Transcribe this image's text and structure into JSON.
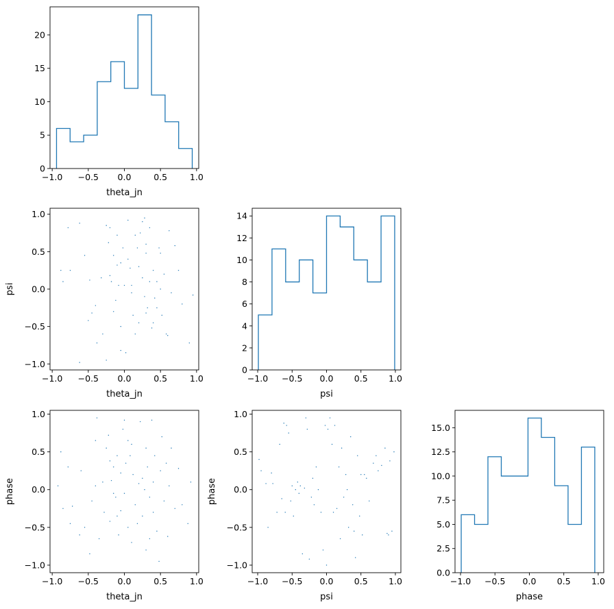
{
  "figure_type": "corner-plot",
  "colors": {
    "histogram": "#1f77b4",
    "scatter": "#1f77b4",
    "axes": "#000000"
  },
  "chart_data": [
    {
      "id": "hist_theta_jn",
      "type": "histogram-step",
      "xlabel": "theta_jn",
      "ylabel": "",
      "bin_edges": [
        -0.94,
        -0.752,
        -0.564,
        -0.376,
        -0.188,
        0.0,
        0.188,
        0.376,
        0.564,
        0.752,
        0.94
      ],
      "counts": [
        6,
        4,
        5,
        13,
        16,
        12,
        23,
        11,
        7,
        3
      ],
      "xlim": [
        -1.03,
        1.03
      ],
      "ylim": [
        0,
        24.2
      ],
      "xticks": [
        -1.0,
        -0.5,
        0.0,
        0.5,
        1.0
      ],
      "yticks": [
        0,
        5,
        10,
        15,
        20
      ],
      "xtick_labels": [
        "−1.0",
        "−0.5",
        "0.0",
        "0.5",
        "1.0"
      ],
      "ytick_labels": [
        "0",
        "5",
        "10",
        "15",
        "20"
      ]
    },
    {
      "id": "scatter_theta_jn_psi",
      "type": "scatter",
      "xlabel": "theta_jn",
      "ylabel": "psi",
      "xlim": [
        -1.03,
        1.03
      ],
      "ylim": [
        -1.08,
        1.08
      ],
      "xticks": [
        -1.0,
        -0.5,
        0.0,
        0.5,
        1.0
      ],
      "yticks": [
        -1.0,
        -0.5,
        0.0,
        0.5,
        1.0
      ],
      "xtick_labels": [
        "−1.0",
        "−0.5",
        "0.0",
        "0.5",
        "1.0"
      ],
      "ytick_labels": [
        "−1.0",
        "−0.5",
        "0.0",
        "0.5",
        "1.0"
      ],
      "points": [
        [
          -0.88,
          0.25
        ],
        [
          -0.85,
          0.1
        ],
        [
          -0.78,
          0.82
        ],
        [
          -0.75,
          0.25
        ],
        [
          -0.62,
          0.88
        ],
        [
          -0.62,
          -0.98
        ],
        [
          -0.55,
          0.45
        ],
        [
          -0.5,
          -0.42
        ],
        [
          -0.48,
          0.12
        ],
        [
          -0.45,
          -0.32
        ],
        [
          -0.4,
          -0.22
        ],
        [
          -0.38,
          -0.72
        ],
        [
          -0.3,
          -0.6
        ],
        [
          -0.25,
          0.85
        ],
        [
          -0.25,
          -0.95
        ],
        [
          -0.22,
          0.62
        ],
        [
          -0.2,
          0.18
        ],
        [
          -0.2,
          0.82
        ],
        [
          -0.18,
          0.1
        ],
        [
          -0.15,
          0.45
        ],
        [
          -0.15,
          -0.3
        ],
        [
          -0.12,
          -0.15
        ],
        [
          -0.1,
          0.72
        ],
        [
          -0.1,
          0.32
        ],
        [
          -0.08,
          0.05
        ],
        [
          -0.05,
          0.35
        ],
        [
          -0.05,
          -0.82
        ],
        [
          -0.02,
          0.55
        ],
        [
          0.0,
          0.05
        ],
        [
          0.02,
          -0.85
        ],
        [
          0.05,
          0.92
        ],
        [
          0.05,
          0.4
        ],
        [
          0.08,
          0.28
        ],
        [
          0.1,
          -0.05
        ],
        [
          0.12,
          -0.35
        ],
        [
          0.15,
          0.72
        ],
        [
          0.18,
          0.55
        ],
        [
          0.2,
          -0.45
        ],
        [
          0.22,
          0.75
        ],
        [
          0.25,
          0.9
        ],
        [
          0.25,
          0.15
        ],
        [
          0.28,
          -0.1
        ],
        [
          0.3,
          -0.32
        ],
        [
          0.3,
          0.48
        ],
        [
          0.32,
          -0.25
        ],
        [
          0.35,
          0.82
        ],
        [
          0.35,
          0.1
        ],
        [
          0.38,
          -0.52
        ],
        [
          0.4,
          0.25
        ],
        [
          0.42,
          -0.12
        ],
        [
          0.45,
          0.1
        ],
        [
          0.45,
          -0.25
        ],
        [
          0.48,
          0.55
        ],
        [
          0.5,
          0.48
        ],
        [
          0.52,
          -0.35
        ],
        [
          0.55,
          0.2
        ],
        [
          0.58,
          -0.6
        ],
        [
          0.6,
          -0.62
        ],
        [
          0.62,
          0.78
        ],
        [
          0.65,
          -0.05
        ],
        [
          0.7,
          0.58
        ],
        [
          0.75,
          0.25
        ],
        [
          0.8,
          -0.2
        ],
        [
          0.9,
          -0.72
        ],
        [
          0.95,
          -0.08
        ],
        [
          0.28,
          0.95
        ],
        [
          0.3,
          0.6
        ],
        [
          -0.32,
          0.15
        ],
        [
          0.1,
          0.05
        ],
        [
          0.15,
          -0.6
        ],
        [
          -0.05,
          -0.5
        ],
        [
          0.2,
          0.3
        ],
        [
          0.4,
          -0.45
        ],
        [
          0.5,
          0.0
        ]
      ]
    },
    {
      "id": "hist_psi",
      "type": "histogram-step",
      "xlabel": "psi",
      "ylabel": "",
      "bin_edges": [
        -0.99,
        -0.792,
        -0.594,
        -0.396,
        -0.198,
        0.0,
        0.198,
        0.396,
        0.594,
        0.792,
        0.99
      ],
      "counts": [
        5,
        11,
        8,
        10,
        7,
        14,
        13,
        10,
        8,
        14
      ],
      "xlim": [
        -1.08,
        1.08
      ],
      "ylim": [
        0,
        14.7
      ],
      "xticks": [
        -1.0,
        -0.5,
        0.0,
        0.5,
        1.0
      ],
      "yticks": [
        0,
        2,
        4,
        6,
        8,
        10,
        12,
        14
      ],
      "xtick_labels": [
        "−1.0",
        "−0.5",
        "0.0",
        "0.5",
        "1.0"
      ],
      "ytick_labels": [
        "0",
        "2",
        "4",
        "6",
        "8",
        "10",
        "12",
        "14"
      ]
    },
    {
      "id": "scatter_theta_jn_phase",
      "type": "scatter",
      "xlabel": "theta_jn",
      "ylabel": "phase",
      "xlim": [
        -1.03,
        1.03
      ],
      "ylim": [
        -1.1,
        1.05
      ],
      "xticks": [
        -1.0,
        -0.5,
        0.0,
        0.5,
        1.0
      ],
      "yticks": [
        -1.0,
        -0.5,
        0.0,
        0.5,
        1.0
      ],
      "xtick_labels": [
        "−1.0",
        "−0.5",
        "0.0",
        "0.5",
        "1.0"
      ],
      "ytick_labels": [
        "−1.0",
        "−0.5",
        "0.0",
        "0.5",
        "1.0"
      ],
      "points": [
        [
          -0.92,
          0.05
        ],
        [
          -0.88,
          0.5
        ],
        [
          -0.85,
          -0.25
        ],
        [
          -0.78,
          0.3
        ],
        [
          -0.75,
          -0.45
        ],
        [
          -0.72,
          -0.22
        ],
        [
          -0.62,
          -0.6
        ],
        [
          -0.6,
          0.25
        ],
        [
          -0.55,
          -0.5
        ],
        [
          -0.48,
          -0.85
        ],
        [
          -0.45,
          -0.15
        ],
        [
          -0.4,
          0.05
        ],
        [
          -0.38,
          0.95
        ],
        [
          -0.35,
          -0.65
        ],
        [
          -0.28,
          -0.3
        ],
        [
          -0.25,
          0.55
        ],
        [
          -0.22,
          0.72
        ],
        [
          -0.2,
          0.38
        ],
        [
          -0.2,
          -0.42
        ],
        [
          -0.18,
          0.12
        ],
        [
          -0.15,
          0.3
        ],
        [
          -0.12,
          -0.1
        ],
        [
          -0.1,
          0.45
        ],
        [
          -0.08,
          -0.6
        ],
        [
          -0.05,
          0.22
        ],
        [
          -0.05,
          -0.28
        ],
        [
          -0.02,
          0.8
        ],
        [
          0.0,
          -0.05
        ],
        [
          0.02,
          0.35
        ],
        [
          0.05,
          -0.5
        ],
        [
          0.08,
          0.45
        ],
        [
          0.1,
          0.6
        ],
        [
          0.12,
          0.2
        ],
        [
          0.15,
          -0.2
        ],
        [
          0.18,
          -0.45
        ],
        [
          0.2,
          0.08
        ],
        [
          0.22,
          0.9
        ],
        [
          0.25,
          -0.35
        ],
        [
          0.28,
          0.0
        ],
        [
          0.3,
          0.55
        ],
        [
          0.3,
          -0.8
        ],
        [
          0.32,
          0.3
        ],
        [
          0.35,
          -0.1
        ],
        [
          0.38,
          0.92
        ],
        [
          0.4,
          -0.3
        ],
        [
          0.42,
          0.45
        ],
        [
          0.45,
          -0.55
        ],
        [
          0.48,
          -0.95
        ],
        [
          0.5,
          0.25
        ],
        [
          0.52,
          0.7
        ],
        [
          0.55,
          -0.15
        ],
        [
          0.58,
          0.35
        ],
        [
          0.6,
          -0.62
        ],
        [
          0.62,
          0.05
        ],
        [
          0.65,
          0.55
        ],
        [
          0.7,
          -0.25
        ],
        [
          0.75,
          0.28
        ],
        [
          0.8,
          -0.2
        ],
        [
          0.88,
          -0.45
        ],
        [
          0.92,
          0.1
        ],
        [
          0.0,
          0.92
        ],
        [
          -0.3,
          0.1
        ],
        [
          0.1,
          -0.7
        ],
        [
          -0.15,
          -0.05
        ],
        [
          0.25,
          0.15
        ],
        [
          0.4,
          0.1
        ],
        [
          -0.4,
          0.65
        ],
        [
          0.35,
          -0.65
        ],
        [
          -0.1,
          -0.35
        ],
        [
          0.05,
          0.65
        ]
      ]
    },
    {
      "id": "scatter_psi_phase",
      "type": "scatter",
      "xlabel": "psi",
      "ylabel": "phase",
      "xlim": [
        -1.08,
        1.08
      ],
      "ylim": [
        -1.1,
        1.05
      ],
      "xticks": [
        -1.0,
        -0.5,
        0.0,
        0.5,
        1.0
      ],
      "yticks": [
        -1.0,
        -0.5,
        0.0,
        0.5,
        1.0
      ],
      "xtick_labels": [
        "−1.0",
        "−0.5",
        "0.0",
        "0.5",
        "1.0"
      ],
      "ytick_labels": [
        "−1.0",
        "−0.5",
        "0.0",
        "0.5",
        "1.0"
      ],
      "points": [
        [
          -0.98,
          0.4
        ],
        [
          -0.95,
          0.25
        ],
        [
          -0.85,
          -0.5
        ],
        [
          -0.8,
          0.22
        ],
        [
          -0.78,
          0.08
        ],
        [
          -0.72,
          -0.3
        ],
        [
          -0.68,
          0.6
        ],
        [
          -0.65,
          -0.12
        ],
        [
          -0.62,
          0.88
        ],
        [
          -0.58,
          0.85
        ],
        [
          -0.55,
          0.75
        ],
        [
          -0.52,
          -0.15
        ],
        [
          -0.5,
          0.05
        ],
        [
          -0.48,
          -0.35
        ],
        [
          -0.45,
          0.0
        ],
        [
          -0.42,
          0.1
        ],
        [
          -0.4,
          -0.05
        ],
        [
          -0.38,
          0.05
        ],
        [
          -0.35,
          -0.85
        ],
        [
          -0.32,
          0.02
        ],
        [
          -0.3,
          0.95
        ],
        [
          -0.28,
          0.8
        ],
        [
          -0.25,
          -0.92
        ],
        [
          -0.22,
          -0.1
        ],
        [
          -0.2,
          0.15
        ],
        [
          -0.18,
          -0.2
        ],
        [
          -0.15,
          0.3
        ],
        [
          -0.12,
          0.0
        ],
        [
          -0.08,
          -0.3
        ],
        [
          -0.05,
          -0.8
        ],
        [
          -0.02,
          0.85
        ],
        [
          0.0,
          -1.0
        ],
        [
          0.02,
          0.8
        ],
        [
          0.05,
          0.95
        ],
        [
          0.08,
          0.6
        ],
        [
          0.1,
          -0.3
        ],
        [
          0.12,
          0.85
        ],
        [
          0.15,
          -0.25
        ],
        [
          0.18,
          0.3
        ],
        [
          0.2,
          -0.65
        ],
        [
          0.22,
          0.55
        ],
        [
          0.25,
          -0.1
        ],
        [
          0.28,
          0.2
        ],
        [
          0.32,
          -0.5
        ],
        [
          0.35,
          0.7
        ],
        [
          0.38,
          -0.2
        ],
        [
          0.4,
          -0.55
        ],
        [
          0.42,
          -0.9
        ],
        [
          0.45,
          0.45
        ],
        [
          0.48,
          -0.35
        ],
        [
          0.5,
          0.2
        ],
        [
          0.52,
          -0.6
        ],
        [
          0.55,
          0.2
        ],
        [
          0.58,
          0.15
        ],
        [
          0.62,
          -0.15
        ],
        [
          0.68,
          0.35
        ],
        [
          0.72,
          0.45
        ],
        [
          0.75,
          0.25
        ],
        [
          0.8,
          0.32
        ],
        [
          0.85,
          0.55
        ],
        [
          0.88,
          -0.58
        ],
        [
          0.9,
          -0.6
        ],
        [
          0.92,
          0.38
        ],
        [
          0.95,
          -0.55
        ],
        [
          0.98,
          0.5
        ],
        [
          -0.88,
          0.08
        ],
        [
          -0.6,
          -0.3
        ],
        [
          0.3,
          0.0
        ]
      ]
    },
    {
      "id": "hist_phase",
      "type": "histogram-step",
      "xlabel": "phase",
      "ylabel": "",
      "bin_edges": [
        -0.99,
        -0.796,
        -0.602,
        -0.408,
        -0.214,
        -0.02,
        0.174,
        0.368,
        0.562,
        0.756,
        0.95
      ],
      "counts": [
        6,
        5,
        12,
        10,
        10,
        16,
        14,
        9,
        5,
        13
      ],
      "xlim": [
        -1.08,
        1.08
      ],
      "ylim": [
        0,
        16.8
      ],
      "xticks": [
        -1.0,
        -0.5,
        0.0,
        0.5,
        1.0
      ],
      "yticks": [
        0,
        2.5,
        5,
        7.5,
        10,
        12.5,
        15
      ],
      "xtick_labels": [
        "−1.0",
        "−0.5",
        "0.0",
        "0.5",
        "1.0"
      ],
      "ytick_labels": [
        "0.0",
        "2.5",
        "5.0",
        "7.5",
        "10.0",
        "12.5",
        "15.0"
      ]
    }
  ]
}
